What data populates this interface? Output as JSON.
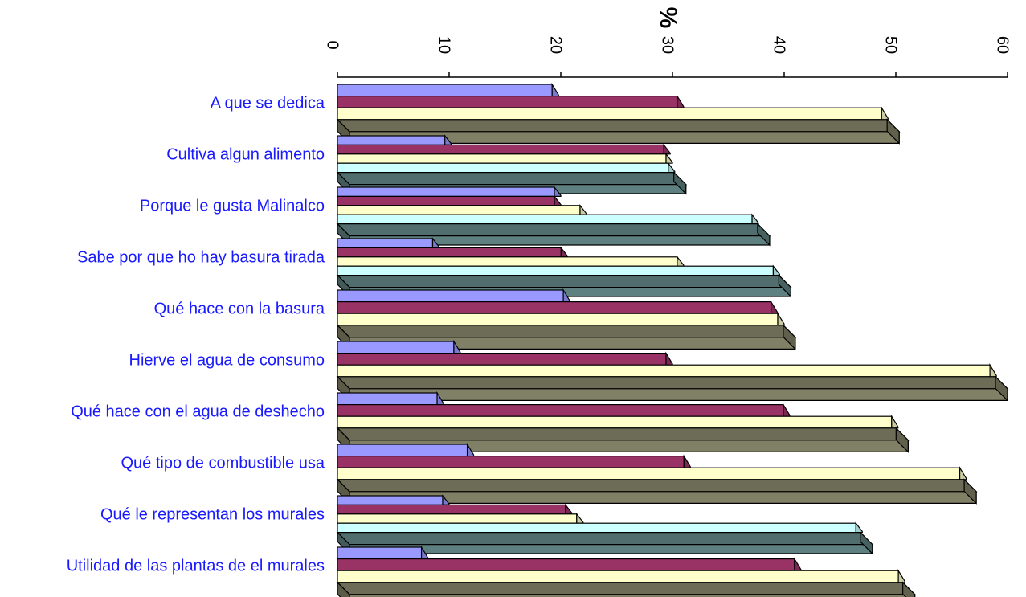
{
  "chart_data": {
    "type": "bar",
    "orientation": "horizontal",
    "three_d": true,
    "title": "",
    "xlabel": "%",
    "ylabel": "",
    "xlim": [
      0,
      60
    ],
    "x_ticks": [
      "0",
      "10",
      "20",
      "30",
      "40",
      "50",
      "60"
    ],
    "tick_values": [
      0,
      10,
      20,
      30,
      40,
      50,
      60
    ],
    "x_axis_position": "top",
    "tick_label_rotation": "90",
    "grid": false,
    "legend": null,
    "categories": [
      "A que se dedica",
      "Cultiva algun alimento",
      "Porque le gusta Malinalco",
      "Sabe por que ho hay basura tirada",
      "Qué hace con la basura",
      "Hierve el agua de consumo",
      "Qué hace con el agua de deshecho",
      "Qué tipo de combustible usa",
      "Qué le representan los murales",
      "Utilidad de las plantas de el murales"
    ],
    "series_colors": [
      "#9999ff",
      "#993366",
      "#ffffcc",
      "#ccffff",
      "#808066"
    ],
    "category_last_color": [
      "#808066",
      "#5f8080",
      "#5f8080",
      "#5f8080",
      "#808066",
      "#808066",
      "#808066",
      "#808066",
      "#5f8080",
      "#808066"
    ],
    "series": [
      {
        "values": [
          19.8,
          10.2,
          20.0,
          9.1,
          20.8,
          11.0,
          9.5,
          12.2,
          10.0,
          8.1
        ]
      },
      {
        "values": [
          31.0,
          29.8,
          20.0,
          20.6,
          39.4,
          30.0,
          40.5,
          31.6,
          21.0,
          41.5
        ]
      },
      {
        "values": [
          49.3,
          30.0,
          22.3,
          31.0,
          40.0,
          59.0,
          50.2,
          56.3,
          22.0,
          50.8
        ]
      },
      {
        "values": [
          null,
          30.2,
          37.7,
          39.6,
          null,
          null,
          null,
          null,
          47.0,
          null
        ]
      },
      {
        "values": [
          50.3,
          31.2,
          38.7,
          40.6,
          41.0,
          60.0,
          51.1,
          57.2,
          47.9,
          51.7
        ]
      }
    ]
  }
}
